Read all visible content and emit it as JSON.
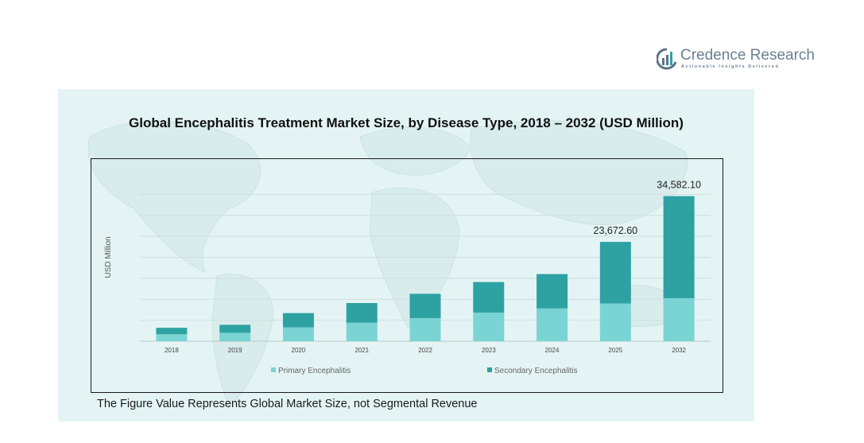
{
  "brand": {
    "name": "Credence Research",
    "tagline": "Actionable Insights Delivered",
    "logo_icon": "bar-chart-circle-icon",
    "color": "#5b7386"
  },
  "footnote": "The Figure Value Represents Global Market Size, not Segmental Revenue",
  "colors": {
    "panel": "#e4f4f4",
    "primary": "#7ad4d4",
    "secondary": "#2ea2a2"
  },
  "chart_data": {
    "type": "bar",
    "stacked": true,
    "title": "Global Encephalitis Treatment Market Size, by Disease Type, 2018 – 2032 (USD Million)",
    "ylabel": "USD Million",
    "xlabel": "",
    "categories": [
      "2018",
      "2019",
      "2020",
      "2021",
      "2022",
      "2023",
      "2024",
      "2025",
      "2032"
    ],
    "series": [
      {
        "name": "Primary Encephalitis",
        "values": [
          1650,
          2000,
          3300,
          4400,
          5500,
          6800,
          7800,
          9000,
          10250
        ]
      },
      {
        "name": "Secondary Encephalitis",
        "values": [
          1550,
          1900,
          3400,
          4700,
          5800,
          7300,
          8200,
          14672.6,
          24332.1
        ]
      }
    ],
    "total_labels": [
      "",
      "",
      "",
      "",
      "",
      "",
      "",
      "23,672.60",
      "34,582.10"
    ],
    "ylim": [
      0,
      40000
    ],
    "grid": true,
    "legend_position": "bottom"
  }
}
